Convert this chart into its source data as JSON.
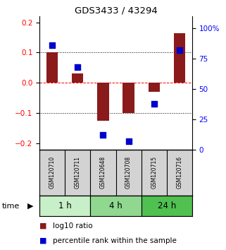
{
  "title": "GDS3433 / 43294",
  "samples": [
    "GSM120710",
    "GSM120711",
    "GSM120648",
    "GSM120708",
    "GSM120715",
    "GSM120716"
  ],
  "log10_ratio": [
    0.1,
    0.03,
    -0.125,
    -0.1,
    -0.03,
    0.165
  ],
  "percentile_rank": [
    0.86,
    0.68,
    0.12,
    0.07,
    0.38,
    0.82
  ],
  "time_groups": [
    {
      "label": "1 h",
      "samples": [
        0,
        1
      ],
      "color": "#c8f0c8"
    },
    {
      "label": "4 h",
      "samples": [
        2,
        3
      ],
      "color": "#90d890"
    },
    {
      "label": "24 h",
      "samples": [
        4,
        5
      ],
      "color": "#50c050"
    }
  ],
  "bar_color": "#8B1A1A",
  "dot_color": "#0000CD",
  "ylim_left": [
    -0.22,
    0.22
  ],
  "ylim_right": [
    0,
    110
  ],
  "yticks_left": [
    -0.2,
    -0.1,
    0,
    0.1,
    0.2
  ],
  "yticks_right": [
    0,
    25,
    50,
    75,
    100
  ],
  "ytick_labels_right": [
    "0",
    "25",
    "50",
    "75",
    "100%"
  ],
  "grid_lines": [
    -0.1,
    0.0,
    0.1
  ],
  "bar_width": 0.45,
  "dot_size": 30,
  "background_color": "#ffffff"
}
